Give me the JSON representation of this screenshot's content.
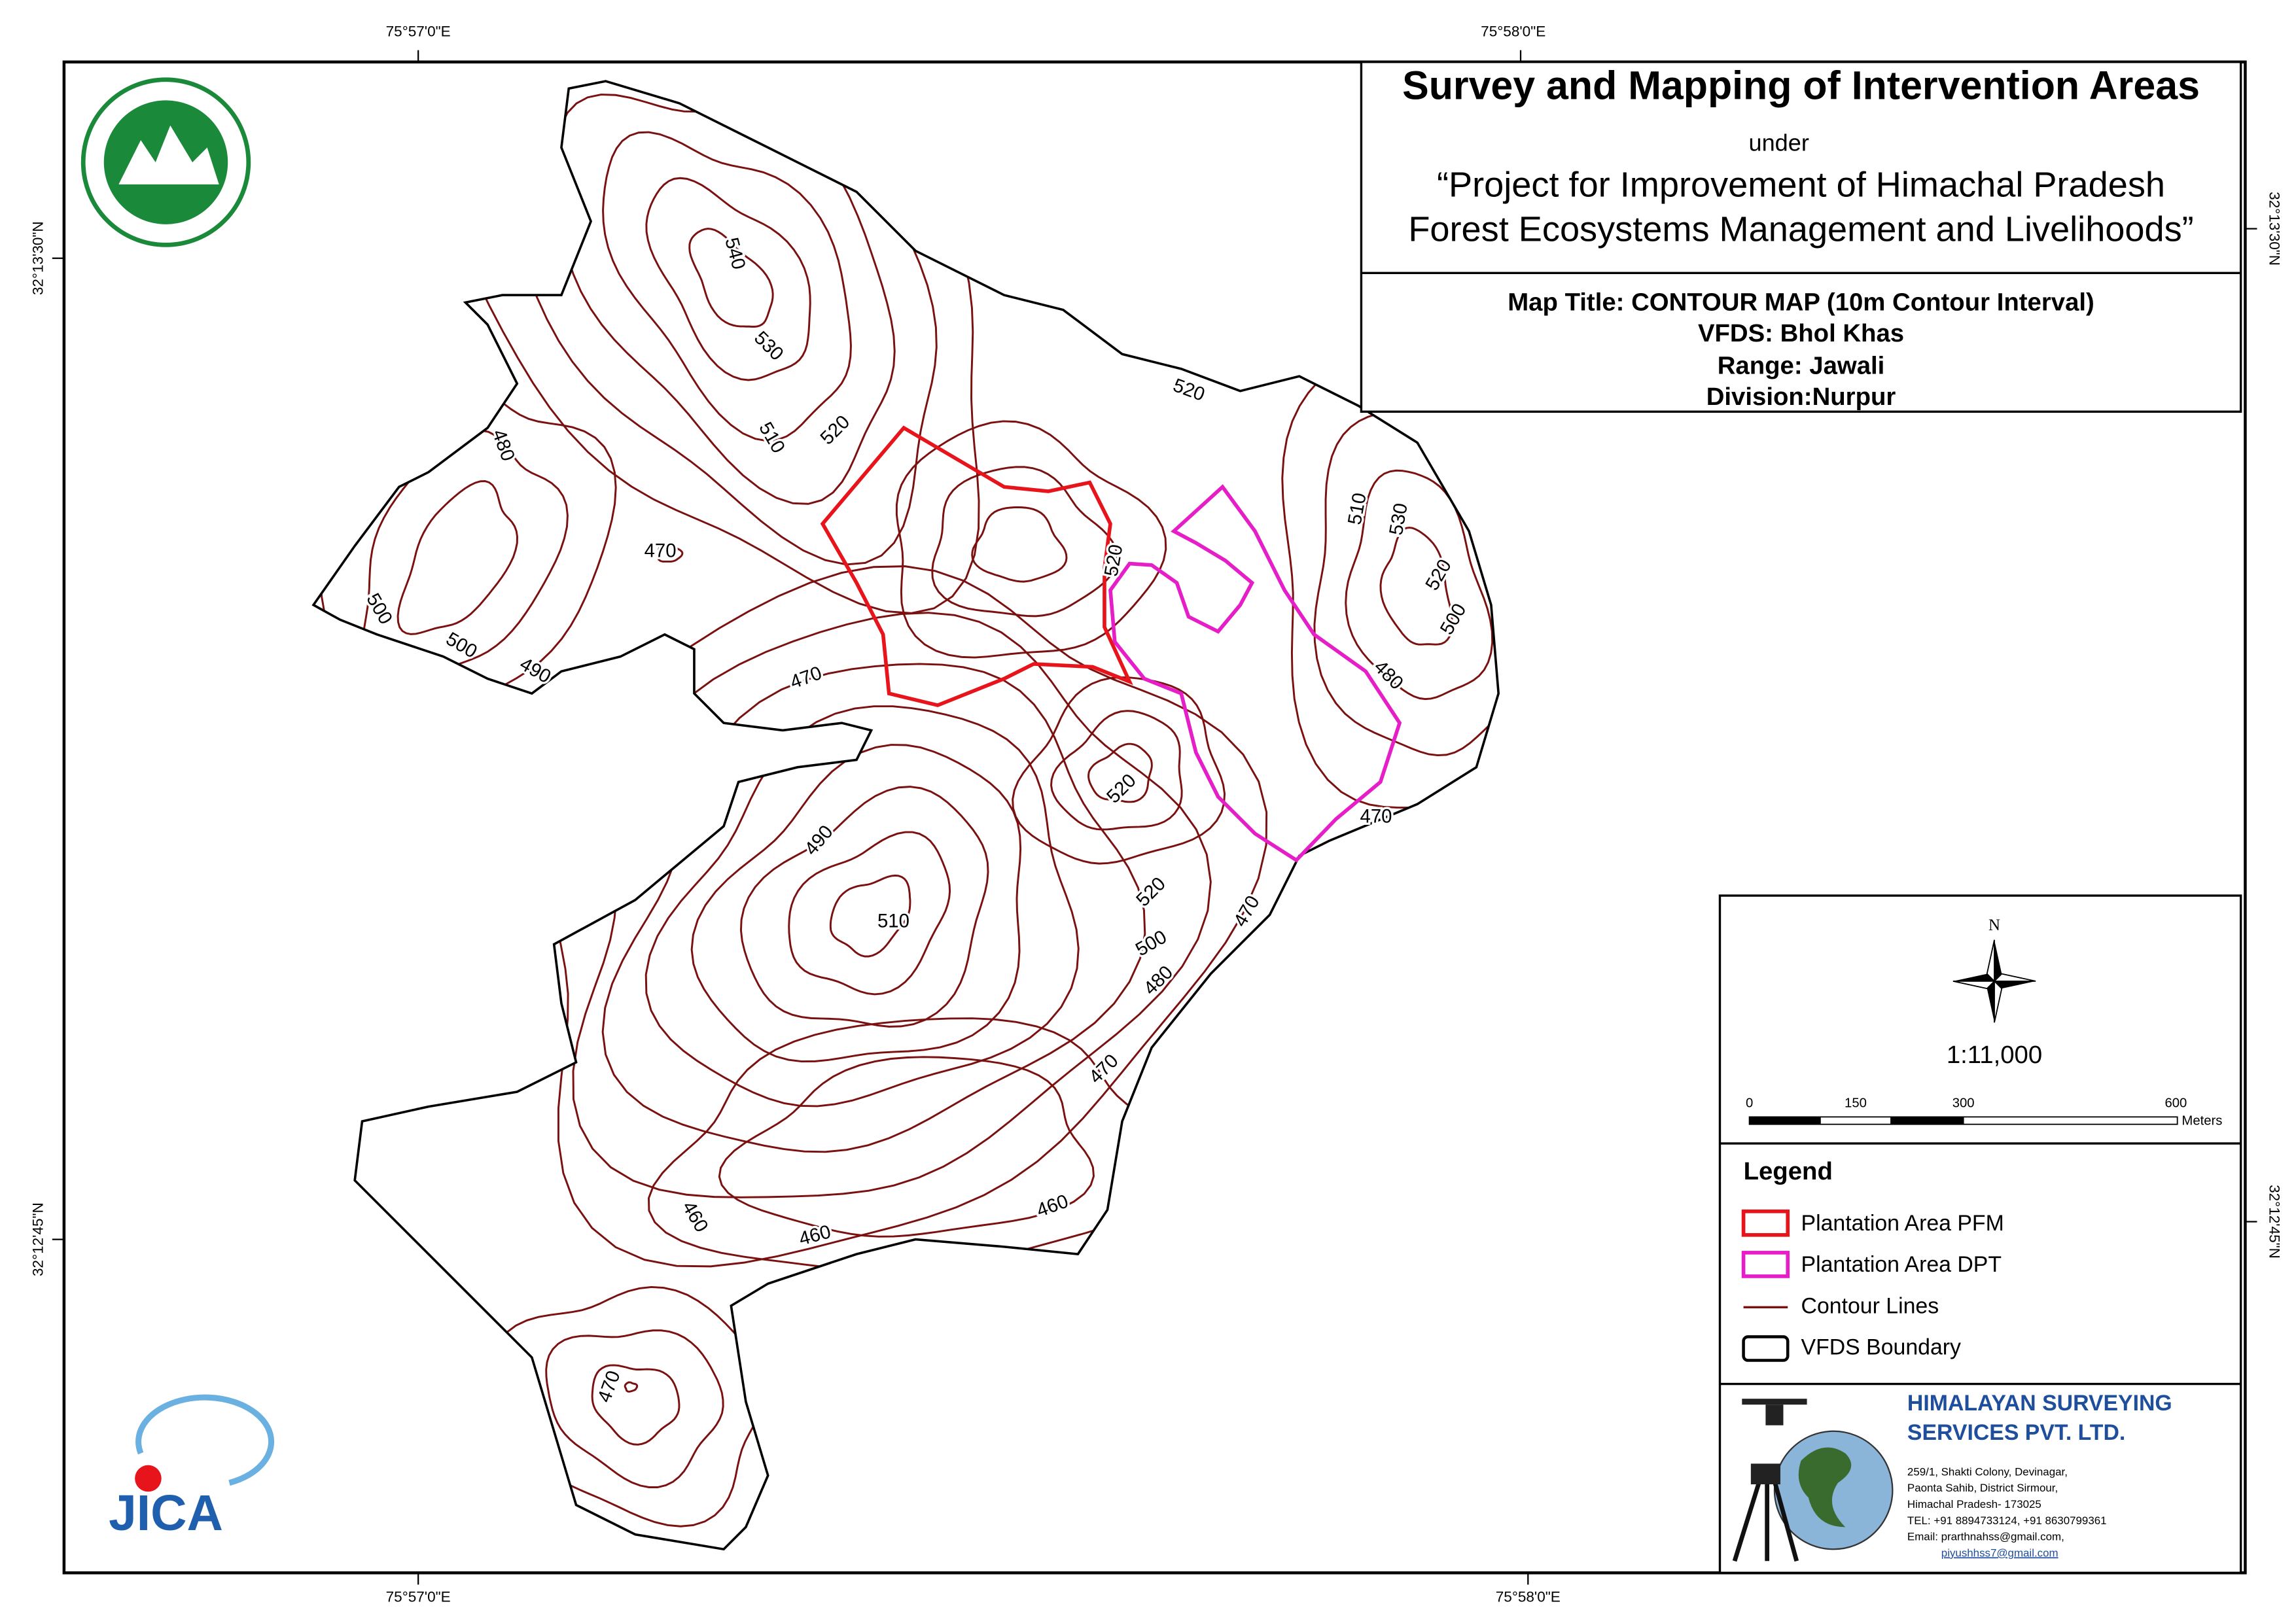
{
  "header": {
    "title": "Survey and Mapping of Intervention Areas",
    "under": "under",
    "project": [
      "“Project for Improvement of Himachal Pradesh",
      "Forest Ecosystems Management and Livelihoods”"
    ]
  },
  "map_info": [
    "Map Title: CONTOUR MAP (10m Contour Interval)",
    "VFDS: Bhol Khas",
    "Range: Jawali",
    "Division:Nurpur"
  ],
  "coordinates": {
    "top": [
      "75°57'0\"E",
      "75°58'0\"E"
    ],
    "bottom": [
      "75°57'0\"E",
      "75°58'0\"E"
    ],
    "left": [
      "32°13'30\"N",
      "32°12'45\"N"
    ],
    "right": [
      "32°13'30\"N",
      "32°12'45\"N"
    ]
  },
  "contour_labels": [
    540,
    530,
    520,
    510,
    520,
    480,
    470,
    500,
    500,
    490,
    470,
    520,
    510,
    530,
    520,
    500,
    480,
    520,
    490,
    510,
    520,
    500,
    470,
    480,
    470,
    470,
    460,
    460,
    460,
    470
  ],
  "north": "N",
  "scale": "1:11,000",
  "scale_bar": [
    "0",
    "150",
    "300",
    "600",
    "Meters"
  ],
  "legend": {
    "title": "Legend",
    "items": [
      "Plantation Area PFM",
      "Plantation Area DPT",
      "Contour Lines",
      "VFDS Boundary"
    ]
  },
  "logos": {
    "jica": "JICA"
  },
  "company": {
    "name": [
      "HIMALAYAN SURVEYING",
      "SERVICES PVT. LTD."
    ],
    "address": [
      "259/1, Shakti Colony, Devinagar,",
      "Paonta Sahib, District Sirmour,",
      "Himachal Pradesh- 173025",
      "TEL: +91 8894733124, +91 8630799361",
      "Email: prarthnahss@gmail.com,",
      "piyushhss7@gmail.com"
    ]
  }
}
